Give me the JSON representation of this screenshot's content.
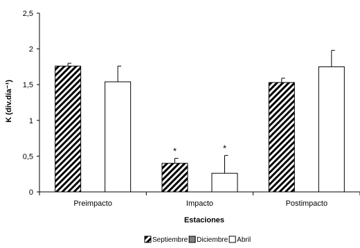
{
  "chart_data": {
    "type": "bar",
    "title": "",
    "xlabel": "Estaciones",
    "ylabel": "K (div.día⁻¹)",
    "ylim": [
      0,
      2.5
    ],
    "yticks": [
      {
        "value": 0,
        "label": "0"
      },
      {
        "value": 0.5,
        "label": "0,5"
      },
      {
        "value": 1,
        "label": "1"
      },
      {
        "value": 1.5,
        "label": "1,5"
      },
      {
        "value": 2,
        "label": "2"
      },
      {
        "value": 2.5,
        "label": "2,5"
      }
    ],
    "categories": [
      "Preimpacto",
      "Impacto",
      "Postimpacto"
    ],
    "series": [
      {
        "name": "Septiembre",
        "pattern": "diagonal-hatch",
        "color": "#000000",
        "values": [
          1.76,
          0.4,
          1.53
        ],
        "errors": [
          0.04,
          0.07,
          0.06
        ],
        "annotations": [
          "",
          "*",
          ""
        ]
      },
      {
        "name": "Diciembre",
        "pattern": "solid",
        "color": "#808080",
        "values": [
          null,
          null,
          null
        ],
        "errors": [
          null,
          null,
          null
        ],
        "annotations": [
          "",
          "",
          ""
        ]
      },
      {
        "name": "Abril",
        "pattern": "empty",
        "color": "#ffffff",
        "values": [
          1.54,
          0.26,
          1.75
        ],
        "errors": [
          0.22,
          0.25,
          0.23
        ],
        "annotations": [
          "",
          "*",
          ""
        ]
      }
    ],
    "grid": false,
    "legend_position": "bottom-center"
  }
}
